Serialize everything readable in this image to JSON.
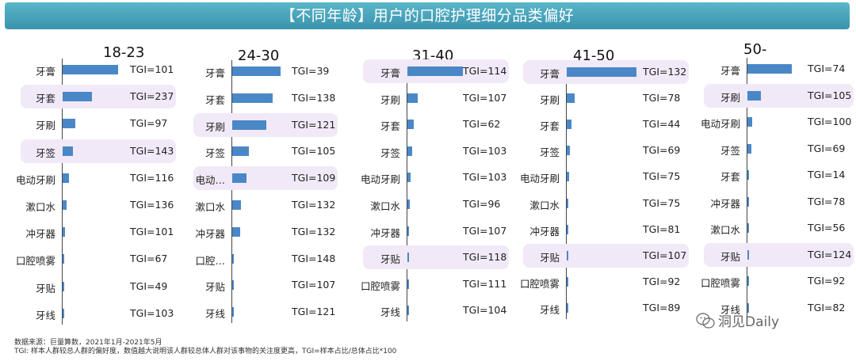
{
  "title": "【不同年龄】用户的口腔护理细分品类偏好",
  "footer": {
    "line1": "数据来源：巨量算数，2021年1月-2021年5月",
    "line2": "TGI: 样本人群较总人群的偏好度，数值越大说明该人群较总体人群对该事物的关注度更高，TGI=样本占比/总体占比*100"
  },
  "watermark": "洞见Daily",
  "colors": {
    "bar": "#4a87c7",
    "highlight": "#f1e9f7",
    "banner": "#4aa6bd"
  },
  "chart_data": [
    {
      "type": "bar",
      "title": "18-23",
      "categories": [
        "牙膏",
        "牙套",
        "牙刷",
        "牙签",
        "电动牙刷",
        "漱口水",
        "冲牙器",
        "口腔喷雾",
        "牙贴",
        "牙线"
      ],
      "labels": [
        "TGI=101",
        "TGI=237",
        "TGI=97",
        "TGI=143",
        "TGI=116",
        "TGI=136",
        "TGI=101",
        "TGI=67",
        "TGI=49",
        "TGI=103"
      ],
      "values": [
        0.44,
        0.23,
        0.1,
        0.08,
        0.05,
        0.03,
        0.02,
        0.006,
        0.005,
        0.003
      ],
      "highlighted": [
        1,
        3
      ]
    },
    {
      "type": "bar",
      "title": "24-30",
      "categories": [
        "牙膏",
        "牙套",
        "牙刷",
        "牙签",
        "电动…",
        "漱口水",
        "冲牙器",
        "口腔…",
        "牙贴",
        "牙线"
      ],
      "labels": [
        "TGI=39",
        "TGI=138",
        "TGI=121",
        "TGI=105",
        "TGI=109",
        "TGI=132",
        "TGI=132",
        "TGI=148",
        "TGI=107",
        "TGI=121"
      ],
      "values": [
        0.38,
        0.32,
        0.27,
        0.13,
        0.11,
        0.07,
        0.06,
        0.01,
        0.006,
        0.003
      ],
      "highlighted": [
        2,
        4
      ]
    },
    {
      "type": "bar",
      "title": "31-40",
      "categories": [
        "牙膏",
        "牙刷",
        "牙套",
        "牙签",
        "电动牙刷",
        "漱口水",
        "冲牙器",
        "牙贴",
        "口腔喷雾",
        "牙线"
      ],
      "labels": [
        "TGI=114",
        "TGI=107",
        "TGI=62",
        "TGI=103",
        "TGI=103",
        "TGI=96",
        "TGI=107",
        "TGI=118",
        "TGI=111",
        "TGI=104"
      ],
      "values": [
        0.5,
        0.09,
        0.06,
        0.04,
        0.03,
        0.02,
        0.01,
        0.008,
        0.006,
        0.004
      ],
      "highlighted": [
        0,
        7
      ]
    },
    {
      "type": "bar",
      "title": "41-50",
      "categories": [
        "牙膏",
        "牙刷",
        "牙套",
        "牙签",
        "电动牙刷",
        "漱口水",
        "冲牙器",
        "牙贴",
        "口腔喷雾",
        "牙线"
      ],
      "labels": [
        "TGI=132",
        "TGI=78",
        "TGI=44",
        "TGI=69",
        "TGI=75",
        "TGI=75",
        "TGI=81",
        "TGI=107",
        "TGI=92",
        "TGI=89"
      ],
      "values": [
        0.63,
        0.07,
        0.04,
        0.03,
        0.02,
        0.015,
        0.01,
        0.006,
        0.005,
        0.004
      ],
      "highlighted": [
        0,
        7
      ]
    },
    {
      "type": "bar",
      "title": "50-",
      "categories": [
        "牙膏",
        "牙刷",
        "电动牙刷",
        "牙签",
        "牙套",
        "冲牙器",
        "漱口水",
        "牙贴",
        "口腔喷雾",
        "牙线"
      ],
      "labels": [
        "TGI=74",
        "TGI=105",
        "TGI=100",
        "TGI=69",
        "TGI=14",
        "TGI=78",
        "TGI=56",
        "TGI=124",
        "TGI=92",
        "TGI=82"
      ],
      "values": [
        0.47,
        0.14,
        0.05,
        0.04,
        0.02,
        0.012,
        0.01,
        0.007,
        0.005,
        0.003
      ],
      "highlighted": [
        1,
        7
      ]
    }
  ]
}
